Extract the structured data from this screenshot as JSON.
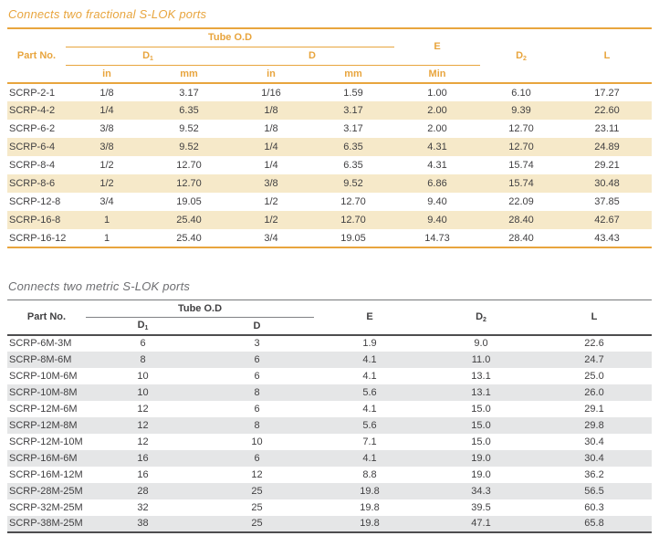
{
  "fractional": {
    "title": "Connects two fractional S-LOK ports",
    "accent_color": "#E8A53E",
    "stripe_color": "#F6E9C9",
    "header": {
      "part_no": "Part No.",
      "tube_od": "Tube O.D",
      "d1_base": "D",
      "d1_sub": "1",
      "d": "D",
      "unit_in_1": "in",
      "unit_mm_1": "mm",
      "unit_in_2": "in",
      "unit_mm_2": "mm",
      "e": "E",
      "e_min": "Min",
      "d2_base": "D",
      "d2_sub": "2",
      "l": "L"
    },
    "rows": [
      [
        "SCRP-2-1",
        "1/8",
        "3.17",
        "1/16",
        "1.59",
        "1.00",
        "6.10",
        "17.27"
      ],
      [
        "SCRP-4-2",
        "1/4",
        "6.35",
        "1/8",
        "3.17",
        "2.00",
        "9.39",
        "22.60"
      ],
      [
        "SCRP-6-2",
        "3/8",
        "9.52",
        "1/8",
        "3.17",
        "2.00",
        "12.70",
        "23.11"
      ],
      [
        "SCRP-6-4",
        "3/8",
        "9.52",
        "1/4",
        "6.35",
        "4.31",
        "12.70",
        "24.89"
      ],
      [
        "SCRP-8-4",
        "1/2",
        "12.70",
        "1/4",
        "6.35",
        "4.31",
        "15.74",
        "29.21"
      ],
      [
        "SCRP-8-6",
        "1/2",
        "12.70",
        "3/8",
        "9.52",
        "6.86",
        "15.74",
        "30.48"
      ],
      [
        "SCRP-12-8",
        "3/4",
        "19.05",
        "1/2",
        "12.70",
        "9.40",
        "22.09",
        "37.85"
      ],
      [
        "SCRP-16-8",
        "1",
        "25.40",
        "1/2",
        "12.70",
        "9.40",
        "28.40",
        "42.67"
      ],
      [
        "SCRP-16-12",
        "1",
        "25.40",
        "3/4",
        "19.05",
        "14.73",
        "28.40",
        "43.43"
      ]
    ]
  },
  "metric": {
    "title": "Connects two metric S-LOK ports",
    "accent_color": "#6D6E71",
    "stripe_color": "#E5E6E7",
    "header": {
      "part_no": "Part No.",
      "tube_od": "Tube O.D",
      "d1_base": "D",
      "d1_sub": "1",
      "d": "D",
      "e": "E",
      "d2_base": "D",
      "d2_sub": "2",
      "l": "L"
    },
    "rows": [
      [
        "SCRP-6M-3M",
        "6",
        "3",
        "1.9",
        "9.0",
        "22.6"
      ],
      [
        "SCRP-8M-6M",
        "8",
        "6",
        "4.1",
        "11.0",
        "24.7"
      ],
      [
        "SCRP-10M-6M",
        "10",
        "6",
        "4.1",
        "13.1",
        "25.0"
      ],
      [
        "SCRP-10M-8M",
        "10",
        "8",
        "5.6",
        "13.1",
        "26.0"
      ],
      [
        "SCRP-12M-6M",
        "12",
        "6",
        "4.1",
        "15.0",
        "29.1"
      ],
      [
        "SCRP-12M-8M",
        "12",
        "8",
        "5.6",
        "15.0",
        "29.8"
      ],
      [
        "SCRP-12M-10M",
        "12",
        "10",
        "7.1",
        "15.0",
        "30.4"
      ],
      [
        "SCRP-16M-6M",
        "16",
        "6",
        "4.1",
        "19.0",
        "30.4"
      ],
      [
        "SCRP-16M-12M",
        "16",
        "12",
        "8.8",
        "19.0",
        "36.2"
      ],
      [
        "SCRP-28M-25M",
        "28",
        "25",
        "19.8",
        "34.3",
        "56.5"
      ],
      [
        "SCRP-32M-25M",
        "32",
        "25",
        "19.8",
        "39.5",
        "60.3"
      ],
      [
        "SCRP-38M-25M",
        "38",
        "25",
        "19.8",
        "47.1",
        "65.8"
      ]
    ]
  }
}
